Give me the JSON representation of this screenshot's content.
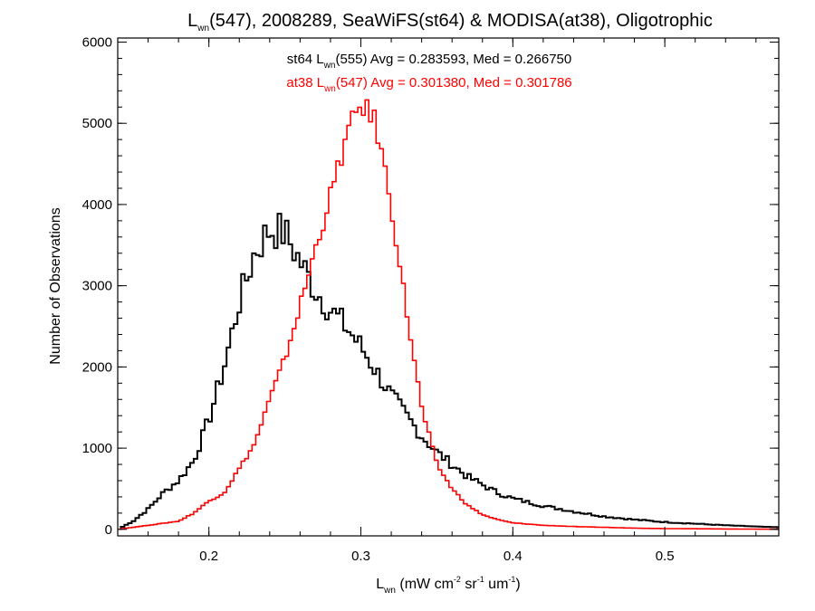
{
  "chart_data": {
    "type": "line",
    "title": {
      "main": "L",
      "sub": "wn",
      "rest": "(547), 2008289, SeaWiFS(st64) & MODISA(at38), Oligotrophic"
    },
    "xlabel": {
      "main": "L",
      "sub": "wn",
      "p1": " (mW cm",
      "sup1": "-2",
      "p2": " sr",
      "sup2": "-1",
      "p3": " um",
      "sup3": "-1",
      "p4": ")"
    },
    "ylabel": "Number of Observations",
    "xlim": [
      0.14,
      0.575
    ],
    "ylim": [
      -80,
      6050
    ],
    "x_ticks": [
      {
        "value": 0.2,
        "label": "0.2"
      },
      {
        "value": 0.3,
        "label": "0.3"
      },
      {
        "value": 0.4,
        "label": "0.4"
      },
      {
        "value": 0.5,
        "label": "0.5"
      }
    ],
    "y_ticks": [
      {
        "value": 0,
        "label": "0"
      },
      {
        "value": 1000,
        "label": "1000"
      },
      {
        "value": 2000,
        "label": "2000"
      },
      {
        "value": 3000,
        "label": "3000"
      },
      {
        "value": 4000,
        "label": "4000"
      },
      {
        "value": 5000,
        "label": "5000"
      },
      {
        "value": 6000,
        "label": "6000"
      }
    ],
    "annotations": [
      {
        "prefix": "st64 L",
        "sub": "wn",
        "suffix": "(555) Avg = 0.283593, Med = 0.266750",
        "color": "#000000"
      },
      {
        "prefix": "at38 L",
        "sub": "wn",
        "suffix": "(547) Avg = 0.301380, Med = 0.301786",
        "color": "#ff0000"
      }
    ],
    "series": [
      {
        "key": "st64",
        "color": "#000000",
        "x": [
          0.14,
          0.15,
          0.16,
          0.17,
          0.18,
          0.19,
          0.2,
          0.21,
          0.22,
          0.23,
          0.24,
          0.25,
          0.26,
          0.27,
          0.28,
          0.29,
          0.3,
          0.31,
          0.32,
          0.33,
          0.34,
          0.35,
          0.36,
          0.37,
          0.38,
          0.39,
          0.4,
          0.42,
          0.44,
          0.46,
          0.48,
          0.5,
          0.52,
          0.54,
          0.56,
          0.575
        ],
        "y": [
          0,
          100,
          250,
          450,
          600,
          850,
          1350,
          2000,
          2800,
          3400,
          3700,
          3650,
          3300,
          2950,
          2700,
          2500,
          2250,
          1950,
          1650,
          1400,
          1150,
          950,
          800,
          650,
          550,
          450,
          380,
          290,
          220,
          160,
          120,
          90,
          70,
          50,
          35,
          25
        ]
      },
      {
        "key": "at38",
        "color": "#ff0000",
        "x": [
          0.14,
          0.16,
          0.18,
          0.19,
          0.2,
          0.21,
          0.22,
          0.23,
          0.24,
          0.25,
          0.26,
          0.27,
          0.28,
          0.29,
          0.3,
          0.31,
          0.32,
          0.33,
          0.34,
          0.35,
          0.36,
          0.37,
          0.38,
          0.39,
          0.4,
          0.42,
          0.44,
          0.46,
          0.48,
          0.5,
          0.52,
          0.54,
          0.56,
          0.575
        ],
        "y": [
          0,
          50,
          100,
          200,
          350,
          450,
          750,
          1050,
          1600,
          2100,
          2750,
          3450,
          4100,
          4800,
          5250,
          5000,
          4000,
          2700,
          1500,
          800,
          500,
          300,
          180,
          120,
          80,
          50,
          35,
          25,
          15,
          10,
          8,
          5,
          3,
          2
        ]
      }
    ]
  }
}
